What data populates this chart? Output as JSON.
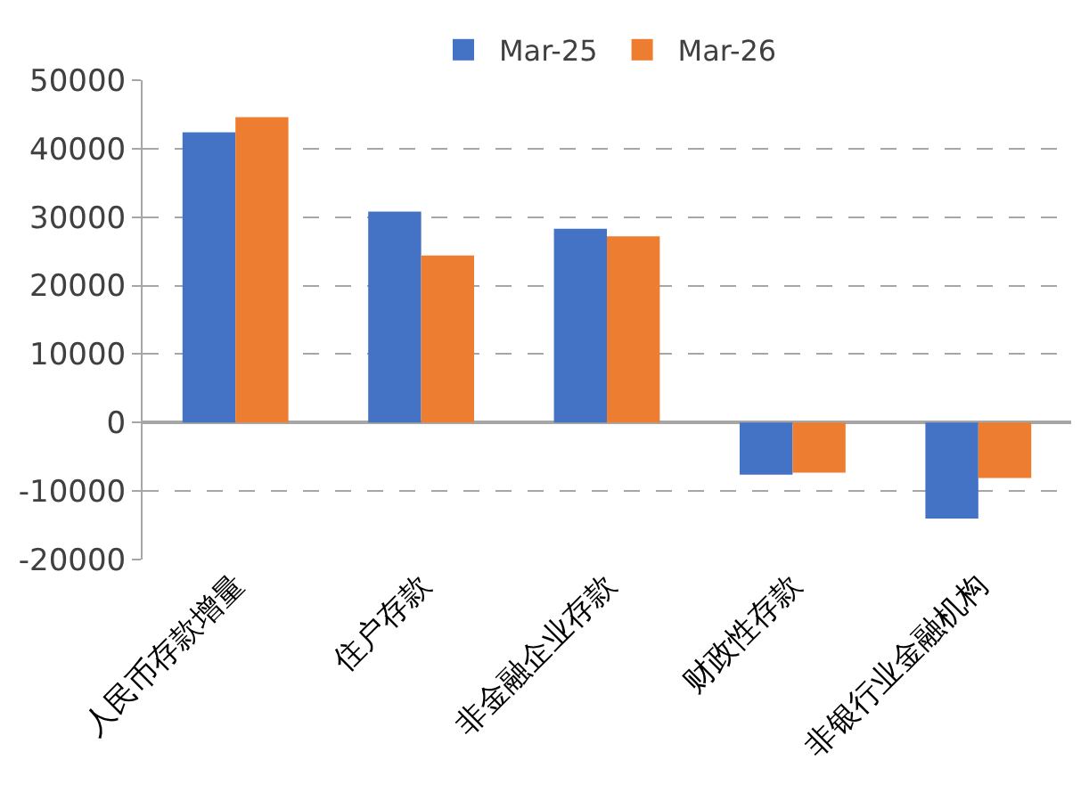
{
  "chart_data": {
    "type": "bar",
    "categories": [
      "人民币存款增量",
      "住户存款",
      "非金融企业存款",
      "财政性存款",
      "非银行业金融机构"
    ],
    "series": [
      {
        "name": "Mar-25",
        "color": "#4472c4",
        "values": [
          42400,
          30800,
          28300,
          -7600,
          -14000
        ]
      },
      {
        "name": "Mar-26",
        "color": "#ed7d31",
        "values": [
          44600,
          24400,
          27200,
          -7300,
          -8100
        ]
      }
    ],
    "ylim": [
      -20000,
      50000
    ],
    "yticks": [
      -20000,
      -10000,
      0,
      10000,
      20000,
      30000,
      40000,
      50000
    ],
    "grid": "y",
    "legend": "top"
  }
}
